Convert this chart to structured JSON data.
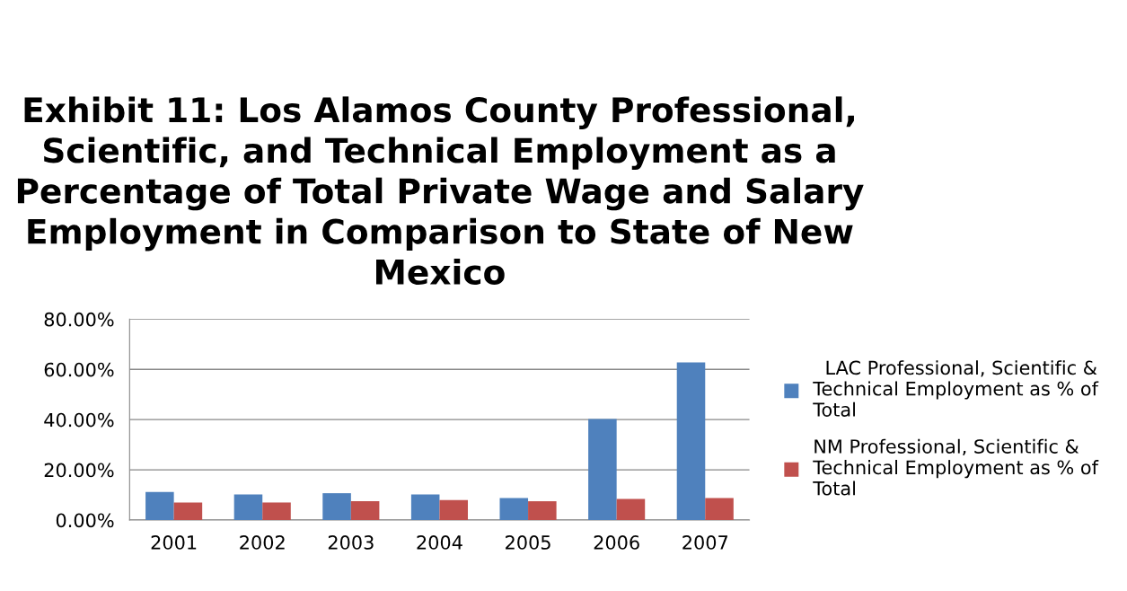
{
  "chart_data": {
    "type": "bar",
    "title": "Exhibit 11: Los Alamos County Professional,\nScientific, and Technical Employment as a\nPercentage of Total Private Wage and Salary\nEmployment in Comparison to State of New\nMexico",
    "categories": [
      "2001",
      "2002",
      "2003",
      "2004",
      "2005",
      "2006",
      "2007"
    ],
    "series": [
      {
        "name": "  LAC Professional, Scientific &\nTechnical Employment as % of\nTotal",
        "color": "#4f81bd",
        "values": [
          11.2,
          10.2,
          10.7,
          10.2,
          8.8,
          40.2,
          62.8
        ]
      },
      {
        "name": "NM Professional, Scientific &\nTechnical Employment as % of\nTotal",
        "color": "#c0504d",
        "values": [
          7.0,
          7.0,
          7.5,
          8.0,
          7.5,
          8.4,
          8.8
        ]
      }
    ],
    "ylim": [
      0,
      80
    ],
    "yticks": [
      {
        "value": 0,
        "label": "0.00%"
      },
      {
        "value": 20,
        "label": "20.00%"
      },
      {
        "value": 40,
        "label": "40.00%"
      },
      {
        "value": 60,
        "label": "60.00%"
      },
      {
        "value": 80,
        "label": "80.00%"
      }
    ],
    "grid": "y",
    "legend": "right"
  }
}
